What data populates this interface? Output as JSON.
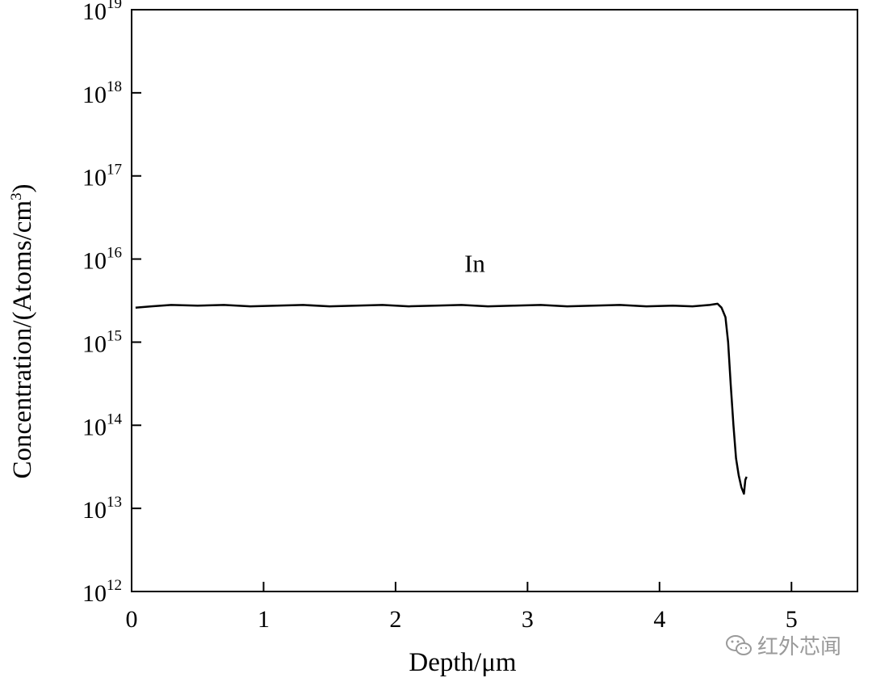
{
  "chart_data": {
    "type": "line",
    "xlabel": "Depth/μm",
    "ylabel": "Concentration/(Atoms/cm3)",
    "ylabel_base": "Concentration/(Atoms/cm",
    "ylabel_sup": "3",
    "ylabel_end": ")",
    "xlim": [
      0,
      5.5
    ],
    "ylim": [
      1000000000000.0,
      1e+19
    ],
    "yscale": "log",
    "x_ticks": [
      0,
      1,
      2,
      3,
      4,
      5
    ],
    "x_tick_labels": [
      "0",
      "1",
      "2",
      "3",
      "4",
      "5"
    ],
    "y_ticks": [
      12,
      13,
      14,
      15,
      16,
      17,
      18,
      19
    ],
    "y_tick_base": "10",
    "y_tick_exponents": [
      "12",
      "13",
      "14",
      "15",
      "16",
      "17",
      "18",
      "19"
    ],
    "grid": false,
    "legend": "none",
    "annotations": [
      {
        "text": "In",
        "x": 2.6,
        "y": 7000000000000000.0
      }
    ],
    "series": [
      {
        "name": "In",
        "color": "#000000",
        "x": [
          0.03,
          0.15,
          0.3,
          0.5,
          0.7,
          0.9,
          1.1,
          1.3,
          1.5,
          1.7,
          1.9,
          2.1,
          2.3,
          2.5,
          2.7,
          2.9,
          3.1,
          3.3,
          3.5,
          3.7,
          3.9,
          4.1,
          4.25,
          4.38,
          4.44,
          4.47,
          4.5,
          4.52,
          4.54,
          4.56,
          4.58,
          4.6,
          4.62,
          4.64,
          4.65,
          4.66
        ],
        "y": [
          2600000000000000.0,
          2700000000000000.0,
          2800000000000000.0,
          2750000000000000.0,
          2800000000000000.0,
          2700000000000000.0,
          2750000000000000.0,
          2800000000000000.0,
          2700000000000000.0,
          2750000000000000.0,
          2800000000000000.0,
          2700000000000000.0,
          2750000000000000.0,
          2800000000000000.0,
          2700000000000000.0,
          2750000000000000.0,
          2800000000000000.0,
          2700000000000000.0,
          2750000000000000.0,
          2800000000000000.0,
          2700000000000000.0,
          2750000000000000.0,
          2700000000000000.0,
          2800000000000000.0,
          2900000000000000.0,
          2600000000000000.0,
          2000000000000000.0,
          1000000000000000.0,
          300000000000000.0,
          100000000000000.0,
          40000000000000.0,
          25000000000000.0,
          18000000000000.0,
          15000000000000.0,
          22000000000000.0,
          24000000000000.0
        ]
      }
    ]
  },
  "watermark": {
    "text": "红外芯闻",
    "icon": "wechat-icon"
  }
}
